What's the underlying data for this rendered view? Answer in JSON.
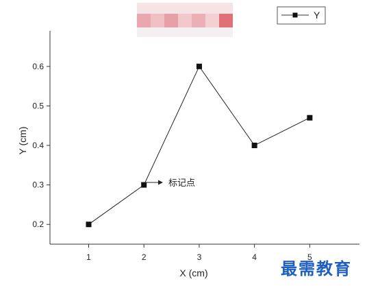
{
  "chart_data": {
    "type": "line",
    "x": [
      1,
      2,
      3,
      4,
      5
    ],
    "series": [
      {
        "name": "Y",
        "values": [
          0.2,
          0.3,
          0.6,
          0.4,
          0.47
        ],
        "color": "#222222",
        "marker": "square"
      }
    ],
    "xlabel": "X (cm)",
    "ylabel": "Y (cm)",
    "xlim": [
      0.3,
      5.9
    ],
    "ylim": [
      0.15,
      0.69
    ],
    "xticks": [
      1,
      2,
      3,
      4,
      5
    ],
    "xtick_labels": [
      "1",
      "2",
      "3",
      "4",
      "5"
    ],
    "yticks": [
      0.2,
      0.3,
      0.4,
      0.5,
      0.6
    ],
    "ytick_labels": [
      "0.2",
      "0.3",
      "0.4",
      "0.5",
      "0.6"
    ],
    "grid": false,
    "legend": {
      "position": "top-right",
      "label": "Y"
    },
    "annotations": [
      {
        "x": 2,
        "y": 0.3,
        "text": "标记点"
      }
    ]
  },
  "watermark": "最需教育"
}
